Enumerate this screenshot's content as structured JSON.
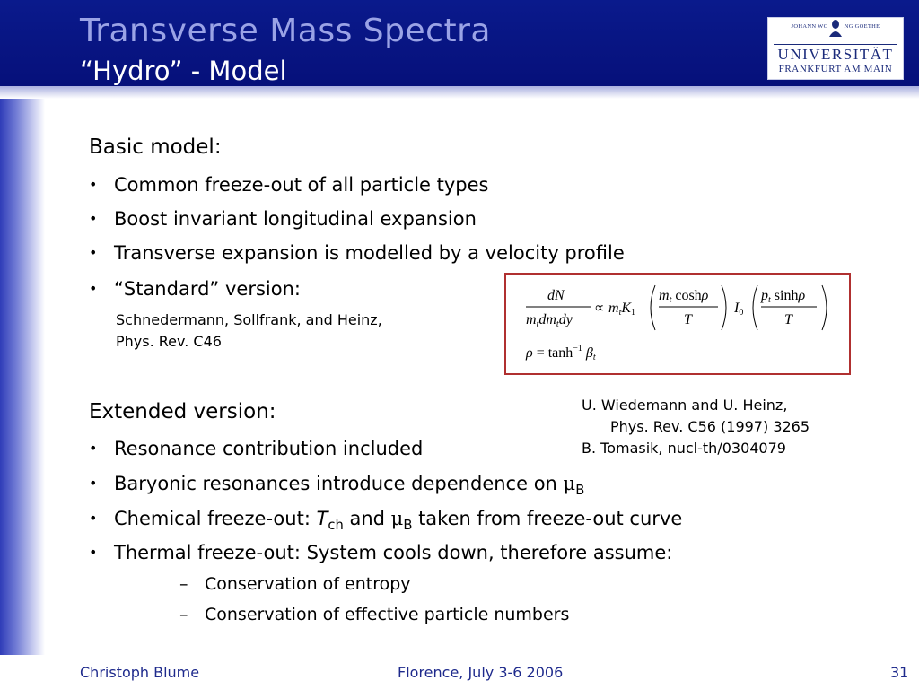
{
  "header": {
    "title": "Transverse Mass Spectra",
    "subtitle": "“Hydro” - Model"
  },
  "logo": {
    "line1": "JOHANN WOLFGANG GOETHE",
    "line2": "UNIVERSITÄT",
    "line3": "FRANKFURT AM MAIN"
  },
  "basic": {
    "heading": "Basic model:",
    "bullets": [
      "Common freeze-out of all particle types",
      "Boost invariant longitudinal expansion",
      "Transverse expansion is modelled by a velocity profile",
      "“Standard” version:"
    ],
    "ref_line1": "Schnedermann, Sollfrank, and Heinz,",
    "ref_line2": "Phys. Rev. C46"
  },
  "formula": {
    "frac_num": "dN",
    "frac_den": "m<sub>t</sub>dm<sub>t</sub>dy",
    "rho_eq": "ρ = tanh⁻¹ β_t"
  },
  "extended": {
    "heading": "Extended version:",
    "bullet1": "Resonance contribution included",
    "bullet2_text": "Baryonic resonances introduce dependence on",
    "bullet2_mu": "μ",
    "bullet2_sub": "B",
    "bullet3_a": "Chemical freeze-out: ",
    "bullet3_T": "T",
    "bullet3_ch": "ch",
    "bullet3_and": " and ",
    "bullet3_mu": "μ",
    "bullet3_sub": "B",
    "bullet3_b": " taken from freeze-out curve",
    "bullet4": "Thermal freeze-out: System cools down, therefore assume:",
    "sub1": "Conservation of entropy",
    "sub2": "Conservation of effective particle numbers"
  },
  "refs": {
    "line1": "U. Wiedemann and U. Heinz,",
    "line2": "Phys. Rev. C56 (1997) 3265",
    "line3": "B. Tomasik, nucl-th/0304079"
  },
  "footer": {
    "author": "Christoph Blume",
    "event": "Florence, July 3-6 2006",
    "page": "31"
  },
  "colors": {
    "header_bg": "#0a1a8c",
    "title": "#9aa3e6",
    "footer_text": "#1e2a8c",
    "formula_border": "#b03030"
  }
}
